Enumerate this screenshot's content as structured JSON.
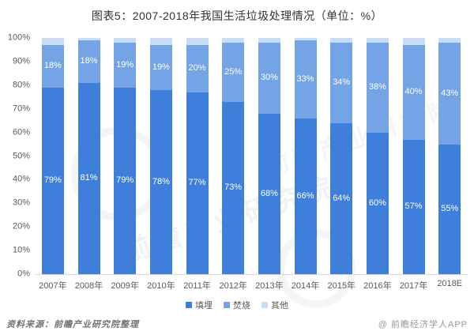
{
  "title": "图表5：2007-2018年我国生活垃圾处理情况（单位：%）",
  "watermark": {
    "text": "前瞻产业研究院"
  },
  "footer": {
    "source": "资料来源：前瞻产业研究院整理",
    "credit": "@ 前瞻经济学人APP"
  },
  "colors": {
    "landfill": "#3F7FDC",
    "incineration": "#74A3E6",
    "other": "#C9DEF6",
    "axis_text": "#595959",
    "title_text": "#333333",
    "baseline": "#D9D9D9"
  },
  "chart_data": {
    "type": "bar",
    "stacked": true,
    "title": "图表5：2007-2018年我国生活垃圾处理情况（单位：%）",
    "xlabel": "",
    "ylabel": "",
    "ylim": [
      0,
      100
    ],
    "grid": false,
    "legend_position": "bottom",
    "y_ticks": [
      "0%",
      "10%",
      "20%",
      "30%",
      "40%",
      "50%",
      "60%",
      "70%",
      "80%",
      "90%",
      "100%"
    ],
    "categories": [
      "2007年",
      "2008年",
      "2009年",
      "2010年",
      "2011年",
      "2012年",
      "2013年",
      "2014年",
      "2015年",
      "2016年",
      "2017年",
      "2018E"
    ],
    "series": [
      {
        "name": "填埋",
        "color_key": "landfill",
        "labels_visible": true,
        "values": [
          79,
          81,
          79,
          78,
          77,
          73,
          68,
          66,
          64,
          60,
          57,
          55
        ]
      },
      {
        "name": "焚烧",
        "color_key": "incineration",
        "labels_visible": true,
        "values": [
          18,
          18,
          19,
          19,
          20,
          25,
          30,
          33,
          34,
          38,
          40,
          43
        ]
      },
      {
        "name": "其他",
        "color_key": "other",
        "labels_visible": false,
        "values": [
          3,
          1,
          2,
          3,
          3,
          2,
          2,
          1,
          2,
          2,
          3,
          2
        ]
      }
    ]
  }
}
